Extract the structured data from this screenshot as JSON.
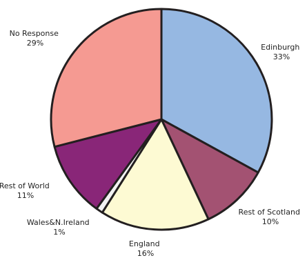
{
  "chart_data": {
    "type": "pie",
    "title": "",
    "slices": [
      {
        "label": "Edinburgh",
        "value": 33,
        "value_label": "33%",
        "color": "#96B8E2"
      },
      {
        "label": "Rest of Scotland",
        "value": 10,
        "value_label": "10%",
        "color": "#A35272"
      },
      {
        "label": "England",
        "value": 16,
        "value_label": "16%",
        "color": "#FDFAD3"
      },
      {
        "label": "Wales&N.Ireland",
        "value": 1,
        "value_label": "1%",
        "color": "#F2F2F2"
      },
      {
        "label": "Rest of World",
        "value": 11,
        "value_label": "11%",
        "color": "#892678"
      },
      {
        "label": "No Response",
        "value": 29,
        "value_label": "29%",
        "color": "#F59A92"
      }
    ],
    "start_angle_deg": 0,
    "direction": "clockwise",
    "legend": "none",
    "slice_border_color": "#231F20"
  }
}
